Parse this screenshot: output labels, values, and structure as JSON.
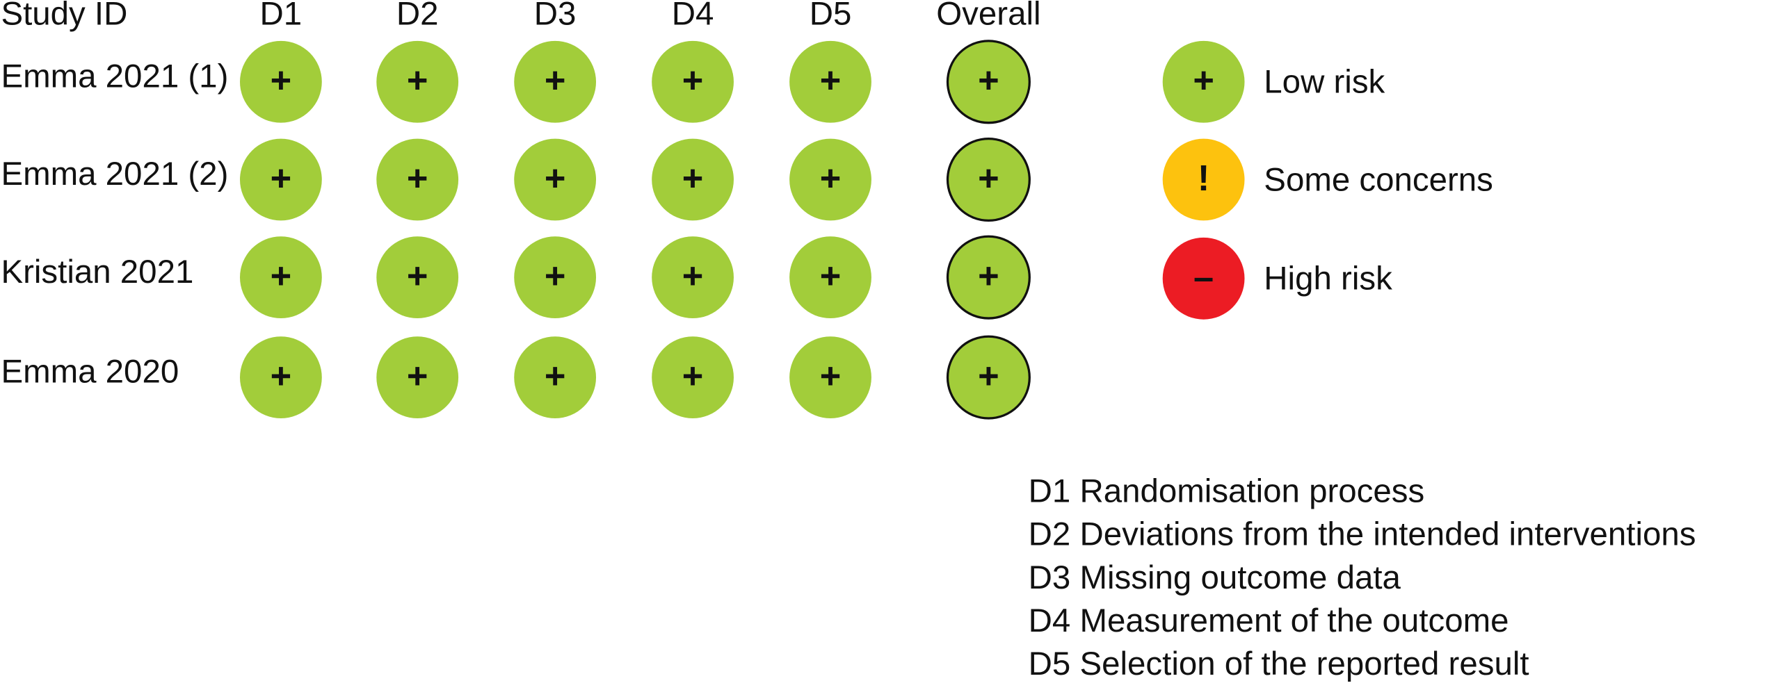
{
  "header": {
    "study_label": "Study ID",
    "domains": [
      "D1",
      "D2",
      "D3",
      "D4",
      "D5"
    ],
    "overall_label": "Overall"
  },
  "rows": [
    {
      "study": "Emma 2021 (1)",
      "judgments": [
        "+",
        "+",
        "+",
        "+",
        "+"
      ],
      "overall": "+"
    },
    {
      "study": "Emma 2021 (2)",
      "judgments": [
        "+",
        "+",
        "+",
        "+",
        "+"
      ],
      "overall": "+"
    },
    {
      "study": "Kristian 2021",
      "judgments": [
        "+",
        "+",
        "+",
        "+",
        "+"
      ],
      "overall": "+"
    },
    {
      "study": "Emma 2020",
      "judgments": [
        "+",
        "+",
        "+",
        "+",
        "+"
      ],
      "overall": "+"
    }
  ],
  "legend": [
    {
      "symbol": "+",
      "label": "Low risk",
      "color": "#a2cd3a"
    },
    {
      "symbol": "!",
      "label": "Some concerns",
      "color": "#fdc20e"
    },
    {
      "symbol": "–",
      "label": "High risk",
      "color": "#ec1c24"
    }
  ],
  "domain_descriptions": [
    "D1 Randomisation process",
    "D2 Deviations from the intended interventions",
    "D3 Missing outcome data",
    "D4 Measurement of the outcome",
    "D5 Selection of the reported result"
  ]
}
